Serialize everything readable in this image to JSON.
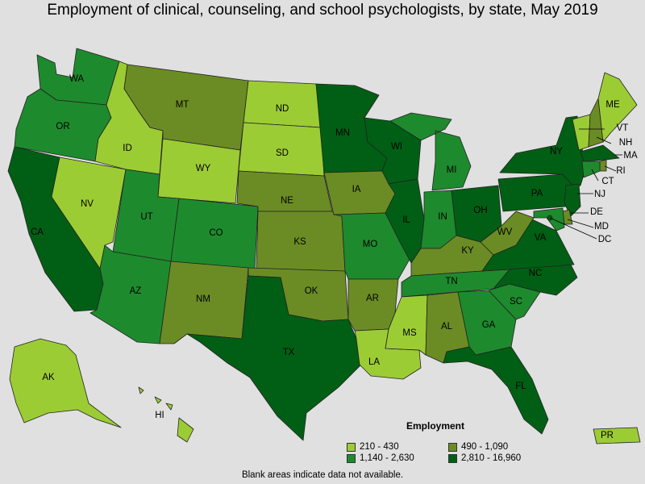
{
  "title": "Employment of clinical, counseling, and school psychologists, by state, May 2019",
  "legend": {
    "title": "Employment",
    "items": [
      {
        "label": "210 - 430",
        "color": "#9ccc34"
      },
      {
        "label": "490 - 1,090",
        "color": "#6b8c24"
      },
      {
        "label": "1,140 - 2,630",
        "color": "#1e8a2e"
      },
      {
        "label": "2,810 - 16,960",
        "color": "#005f14"
      }
    ]
  },
  "footnote": "Blank areas indicate data not available.",
  "states": [
    {
      "abbr": "WA",
      "class": 2
    },
    {
      "abbr": "OR",
      "class": 2
    },
    {
      "abbr": "CA",
      "class": 3
    },
    {
      "abbr": "NV",
      "class": 0
    },
    {
      "abbr": "ID",
      "class": 0
    },
    {
      "abbr": "MT",
      "class": 1
    },
    {
      "abbr": "WY",
      "class": 0
    },
    {
      "abbr": "UT",
      "class": 2
    },
    {
      "abbr": "AZ",
      "class": 2
    },
    {
      "abbr": "CO",
      "class": 2
    },
    {
      "abbr": "NM",
      "class": 1
    },
    {
      "abbr": "ND",
      "class": 0
    },
    {
      "abbr": "SD",
      "class": 0
    },
    {
      "abbr": "NE",
      "class": 1
    },
    {
      "abbr": "KS",
      "class": 1
    },
    {
      "abbr": "OK",
      "class": 1
    },
    {
      "abbr": "TX",
      "class": 3
    },
    {
      "abbr": "MN",
      "class": 3
    },
    {
      "abbr": "IA",
      "class": 1
    },
    {
      "abbr": "MO",
      "class": 2
    },
    {
      "abbr": "AR",
      "class": 1
    },
    {
      "abbr": "LA",
      "class": 0
    },
    {
      "abbr": "WI",
      "class": 3
    },
    {
      "abbr": "IL",
      "class": 3
    },
    {
      "abbr": "MI",
      "class": 2
    },
    {
      "abbr": "IN",
      "class": 2
    },
    {
      "abbr": "OH",
      "class": 3
    },
    {
      "abbr": "KY",
      "class": 1
    },
    {
      "abbr": "TN",
      "class": 2
    },
    {
      "abbr": "MS",
      "class": 0
    },
    {
      "abbr": "AL",
      "class": 1
    },
    {
      "abbr": "GA",
      "class": 2
    },
    {
      "abbr": "FL",
      "class": 3
    },
    {
      "abbr": "SC",
      "class": 2
    },
    {
      "abbr": "NC",
      "class": 3
    },
    {
      "abbr": "VA",
      "class": 3
    },
    {
      "abbr": "WV",
      "class": 1
    },
    {
      "abbr": "PA",
      "class": 3
    },
    {
      "abbr": "NY",
      "class": 3
    },
    {
      "abbr": "VT",
      "class": 0
    },
    {
      "abbr": "NH",
      "class": 1
    },
    {
      "abbr": "ME",
      "class": 0
    },
    {
      "abbr": "MA",
      "class": 3
    },
    {
      "abbr": "RI",
      "class": 1
    },
    {
      "abbr": "CT",
      "class": 2
    },
    {
      "abbr": "NJ",
      "class": 3
    },
    {
      "abbr": "DE",
      "class": 1
    },
    {
      "abbr": "MD",
      "class": 2
    },
    {
      "abbr": "DC",
      "class": 3
    },
    {
      "abbr": "AK",
      "class": 0
    },
    {
      "abbr": "HI",
      "class": 0
    },
    {
      "abbr": "PR",
      "class": 0
    }
  ]
}
